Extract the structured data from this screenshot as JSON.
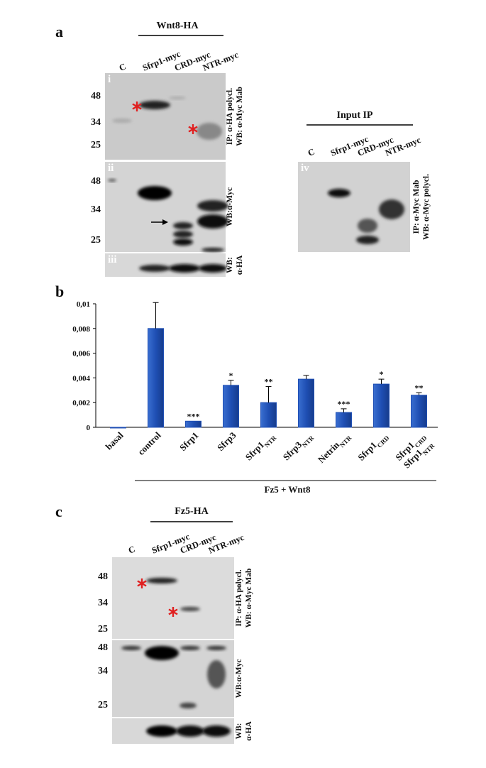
{
  "panel_a": {
    "label": "a",
    "construct": "Wnt8-HA",
    "lanes": [
      "C",
      "Sfrp1-myc",
      "CRD-myc",
      "NTR-myc"
    ],
    "blots": [
      {
        "numeral": "i",
        "markers": [
          48,
          34,
          25
        ],
        "side": [
          "IP: α-HA polycl.",
          "WB: α-Myc Mab"
        ]
      },
      {
        "numeral": "ii",
        "markers": [
          48,
          34,
          25
        ],
        "side": [
          "WB:α-Myc"
        ]
      },
      {
        "numeral": "iii",
        "side": [
          "WB:",
          "α-HA"
        ]
      }
    ]
  },
  "input_ip": {
    "title": "Input IP",
    "lanes": [
      "C",
      "Sfrp1-myc",
      "CRD-myc",
      "NTR-myc"
    ],
    "numeral": "iv",
    "side": [
      "IP: α-Myc Mab",
      "WB: α-Myc polycl."
    ]
  },
  "chart_data": {
    "type": "bar",
    "label": "b",
    "categories": [
      [
        [
          "basal"
        ]
      ],
      [
        [
          "control"
        ]
      ],
      [
        [
          "Sfrp1"
        ]
      ],
      [
        [
          "Sfrp3"
        ]
      ],
      [
        [
          "Sfrp1",
          "NTR"
        ]
      ],
      [
        [
          "Sfrp3",
          "NTR"
        ]
      ],
      [
        [
          "Netrin",
          "NTR"
        ]
      ],
      [
        [
          "Sfrp1",
          "CRD"
        ]
      ],
      [
        [
          "Sfrp1",
          "CRD"
        ],
        [
          "Sfrp1",
          "NTR"
        ]
      ]
    ],
    "values": [
      0,
      0.008,
      0.0005,
      0.0034,
      0.002,
      0.0039,
      0.0012,
      0.0035,
      0.0026
    ],
    "errors": [
      null,
      0.0021,
      null,
      0.0004,
      0.0013,
      0.0003,
      0.0003,
      0.0004,
      0.0002
    ],
    "significance": [
      null,
      null,
      "***",
      "*",
      "**",
      null,
      "***",
      "*",
      "**"
    ],
    "color": "#1f4fb4",
    "ylim": [
      0,
      0.01
    ],
    "yticks": [
      0,
      {
        "value": 0.002,
        "label": "0,002"
      },
      {
        "value": 0.004,
        "label": "0,004"
      },
      {
        "value": 0.006,
        "label": "0,006"
      },
      {
        "value": 0.008,
        "label": "0,008"
      },
      {
        "value": 0.01,
        "label": "0,01"
      }
    ],
    "group_label": "Fz5 + Wnt8"
  },
  "panel_c": {
    "label": "c",
    "construct": "Fz5-HA",
    "lanes": [
      "C",
      "Sfrp1-myc",
      "CRD-myc",
      "NTR-myc"
    ],
    "blots": [
      {
        "markers": [
          48,
          34,
          25
        ],
        "side": [
          "IP: α-HA polycl.",
          "WB: α-Myc Mab"
        ]
      },
      {
        "markers": [
          48,
          34,
          25
        ],
        "side": [
          "WB:α-Myc"
        ]
      },
      {
        "side": [
          "WB:",
          "α-HA"
        ]
      }
    ]
  }
}
